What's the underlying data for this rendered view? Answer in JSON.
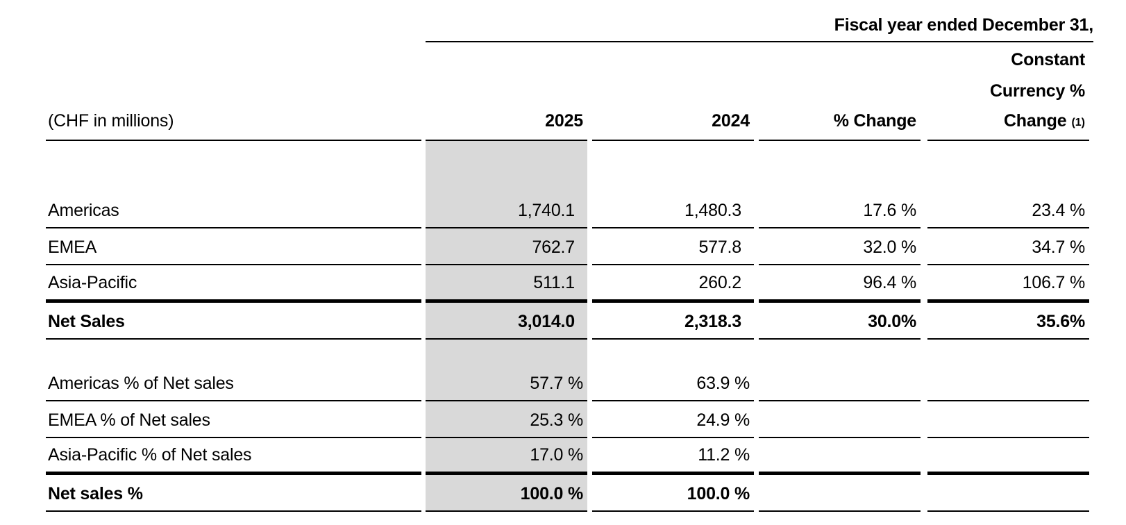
{
  "page": {
    "title": "Fiscal year ended December 31,"
  },
  "table": {
    "unit_label": "(CHF in millions)",
    "columns": {
      "year_current": "2025",
      "year_prior": "2024",
      "pct_change": "% Change",
      "constant_currency_line1": "Constant",
      "constant_currency_line2": "Currency %",
      "constant_currency_line3": "Change",
      "constant_currency_footnote": "(1)"
    },
    "colors": {
      "shade_2025_column": "#D9D9D9",
      "rule": "#000000",
      "text": "#000000"
    },
    "sales_rows": [
      {
        "label": "Americas",
        "y2025": "1,740.1",
        "y2024": "1,480.3",
        "pct_change": "17.6 %",
        "cc_change": "23.4 %"
      },
      {
        "label": "EMEA",
        "y2025": "762.7",
        "y2024": "577.8",
        "pct_change": "32.0 %",
        "cc_change": "34.7 %"
      },
      {
        "label": "Asia-Pacific",
        "y2025": "511.1",
        "y2024": "260.2",
        "pct_change": "96.4 %",
        "cc_change": "106.7 %"
      },
      {
        "label": "Net Sales",
        "y2025": "3,014.0",
        "y2024": "2,318.3",
        "pct_change": "30.0%",
        "cc_change": "35.6%"
      }
    ],
    "mix_rows": [
      {
        "label": "Americas % of Net sales",
        "y2025": "57.7 %",
        "y2024": "63.9 %",
        "pct_change": "",
        "cc_change": ""
      },
      {
        "label": "EMEA % of Net sales",
        "y2025": "25.3 %",
        "y2024": "24.9 %",
        "pct_change": "",
        "cc_change": ""
      },
      {
        "label": "Asia-Pacific % of Net sales",
        "y2025": "17.0 %",
        "y2024": "11.2 %",
        "pct_change": "",
        "cc_change": ""
      },
      {
        "label": "Net sales %",
        "y2025": "100.0 %",
        "y2024": "100.0 %",
        "pct_change": "",
        "cc_change": ""
      }
    ]
  }
}
